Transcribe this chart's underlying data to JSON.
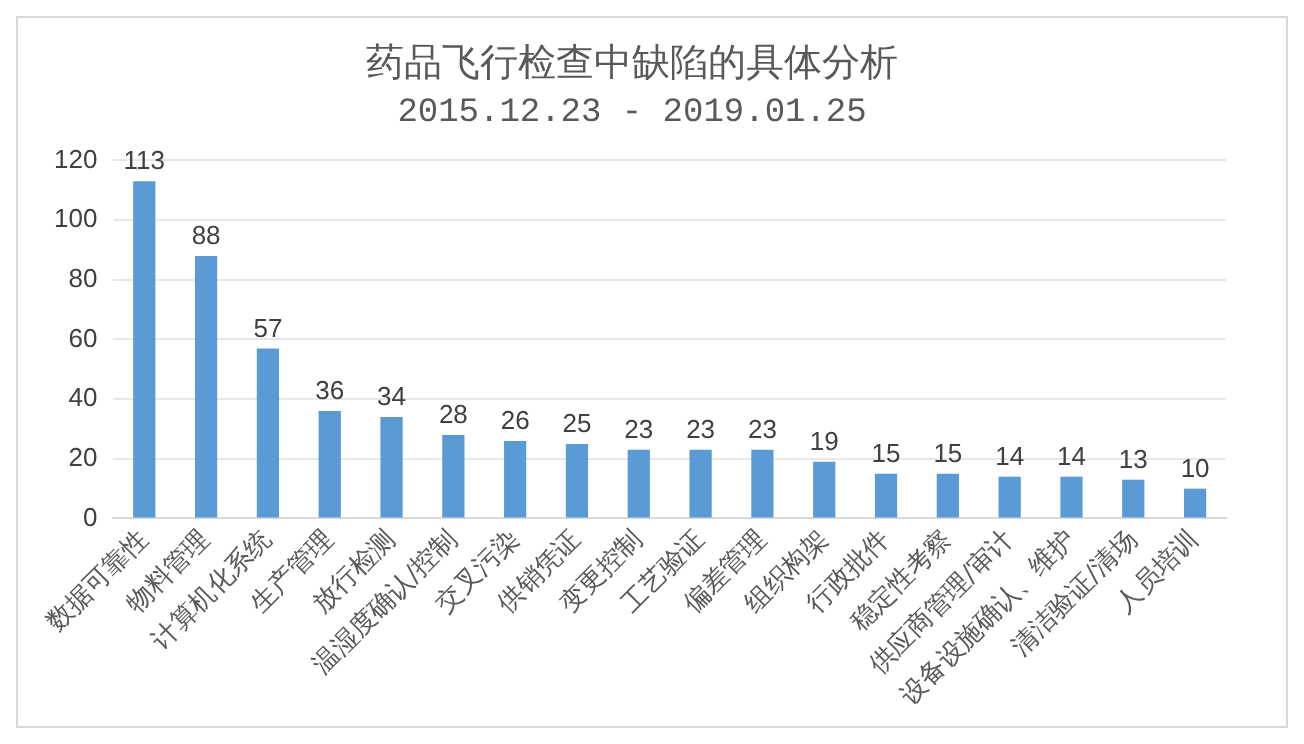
{
  "chart_data": {
    "type": "bar",
    "title": "药品飞行检查中缺陷的具体分析",
    "subtitle": "2015.12.23 - 2019.01.25",
    "categories": [
      "数据可靠性",
      "物料管理",
      "计算机化系统",
      "生产管理",
      "放行检测",
      "温湿度确认/控制",
      "交叉污染",
      "供销凭证",
      "变更控制",
      "工艺验证",
      "偏差管理",
      "组织构架",
      "行政批件",
      "稳定性考察",
      "供应商管理/审计",
      "设备设施确认、维护",
      "清洁验证/清场",
      "人员培训"
    ],
    "values": [
      113,
      88,
      57,
      36,
      34,
      28,
      26,
      25,
      23,
      23,
      23,
      19,
      15,
      15,
      14,
      14,
      13,
      10
    ],
    "color": "#5b9bd5",
    "ylim": [
      0,
      120
    ],
    "yticks": [
      0,
      20,
      40,
      60,
      80,
      100,
      120
    ],
    "grid": "y",
    "data_labels": true,
    "legend": false
  }
}
